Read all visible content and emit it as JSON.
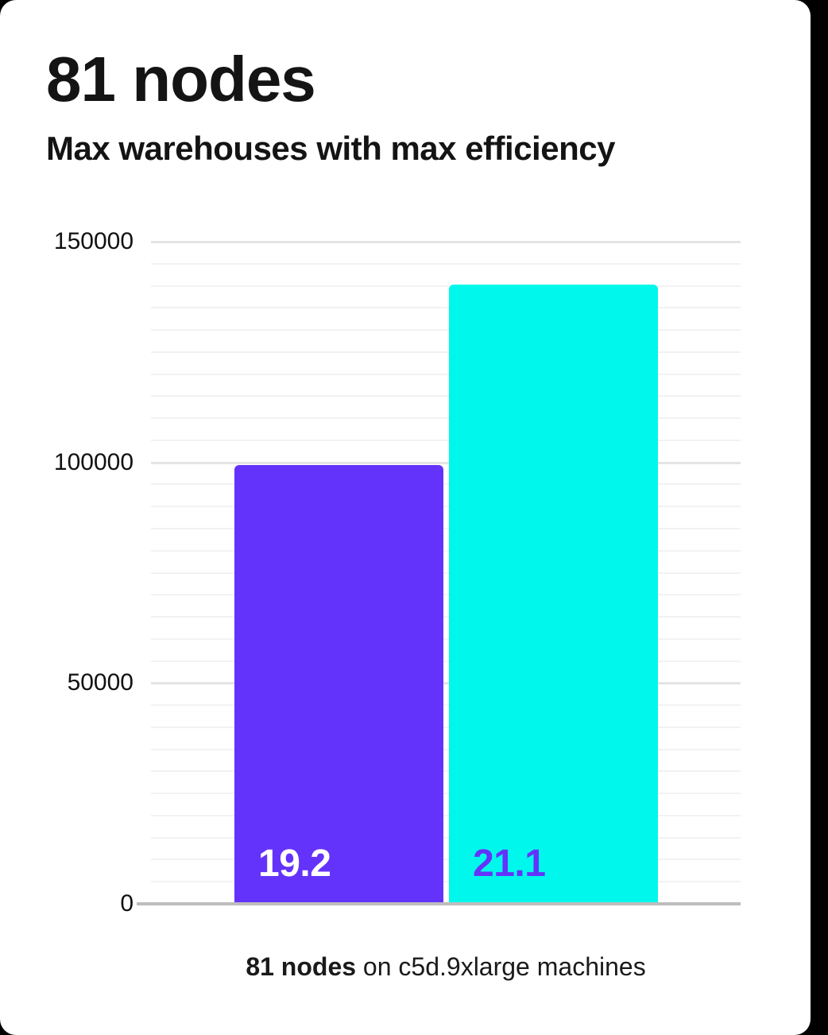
{
  "background_color": "#000000",
  "card_color": "#ffffff",
  "header": {
    "title": "81 nodes",
    "subtitle": "Max warehouses with max efficiency"
  },
  "chart_data": {
    "type": "bar",
    "title": "81 nodes",
    "subtitle": "Max warehouses with max efficiency",
    "xlabel": "",
    "ylabel": "",
    "ylim": [
      0,
      150000
    ],
    "yticks": [
      0,
      50000,
      100000,
      150000
    ],
    "minor_gridline_step": 5000,
    "grid": true,
    "legend": false,
    "bars": [
      {
        "label": "19.2",
        "value": 99400,
        "color": "#6433fb",
        "label_color": "#ffffff"
      },
      {
        "label": "21.1",
        "value": 140200,
        "color": "#00f8ec",
        "label_color": "#6433fb"
      }
    ]
  },
  "caption": {
    "bold_text": "81 nodes",
    "regular_text": " on c5d.9xlarge machines"
  },
  "colors": {
    "bar_purple": "#6433fb",
    "bar_cyan": "#00f8ec",
    "major_gridline": "#e4e4e4",
    "minor_gridline": "#f2f2f2",
    "axis_line": "#bdbdbd",
    "text": "#141414"
  }
}
